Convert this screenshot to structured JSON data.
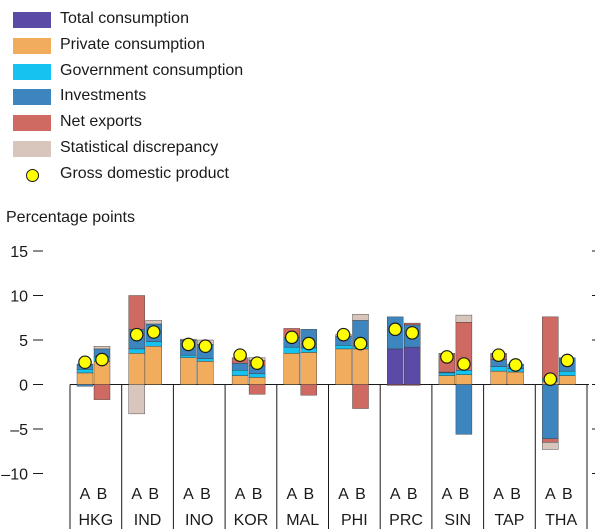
{
  "colors": {
    "total": "#5b4ba6",
    "private": "#f1ad5d",
    "government": "#16c3f0",
    "investments": "#3d85be",
    "net_exports": "#cf6a63",
    "statistical": "#d8c6bd",
    "gdp": "#ffff00"
  },
  "legend": [
    {
      "key": "total",
      "label": "Total consumption"
    },
    {
      "key": "private",
      "label": "Private consumption"
    },
    {
      "key": "government",
      "label": "Government consumption"
    },
    {
      "key": "investments",
      "label": "Investments"
    },
    {
      "key": "net_exports",
      "label": "Net exports"
    },
    {
      "key": "statistical",
      "label": "Statistical discrepancy"
    },
    {
      "key": "gdp",
      "label": "Gross domestic product"
    }
  ],
  "chart_data": {
    "type": "bar",
    "stacked": true,
    "ylabel": "Percentage points",
    "ylim": [
      -11.5,
      15
    ],
    "yticks": [
      15,
      10,
      5,
      0,
      -5,
      -10
    ],
    "ytick_labels": [
      "15",
      "10",
      "5",
      "0",
      "–5",
      "–10"
    ],
    "bar_labels": [
      "A",
      "B"
    ],
    "categories": [
      "HKG",
      "IND",
      "INO",
      "KOR",
      "MAL",
      "PHI",
      "PRC",
      "SIN",
      "TAP",
      "THA"
    ],
    "groups": [
      {
        "code": "HKG",
        "bars": [
          {
            "total": 0,
            "private": 1.3,
            "government": 0.4,
            "investments": 0.6,
            "net_exports": 0,
            "statistical": 0,
            "neg_investments": -0.2,
            "neg_net_exports": 0,
            "neg_statistical": 0,
            "gdp": 2.5
          },
          {
            "total": 0,
            "private": 2.6,
            "government": 0.5,
            "investments": 0.9,
            "net_exports": 0,
            "statistical": 0.3,
            "neg_investments": 0,
            "neg_net_exports": -1.7,
            "neg_statistical": 0,
            "gdp": 2.8
          }
        ]
      },
      {
        "code": "IND",
        "bars": [
          {
            "total": 0,
            "private": 3.5,
            "government": 0.5,
            "investments": 2.2,
            "net_exports": 3.8,
            "statistical": 0,
            "neg_investments": 0,
            "neg_net_exports": 0,
            "neg_statistical": -3.3,
            "gdp": 5.6
          },
          {
            "total": 0,
            "private": 4.3,
            "government": 0.5,
            "investments": 2.0,
            "net_exports": 0,
            "statistical": 0.4,
            "neg_investments": 0,
            "neg_net_exports": 0,
            "neg_statistical": 0,
            "gdp": 5.9
          }
        ]
      },
      {
        "code": "INO",
        "bars": [
          {
            "total": 0,
            "private": 3.0,
            "government": 0.3,
            "investments": 1.7,
            "net_exports": 0,
            "statistical": 0.1,
            "neg_investments": 0,
            "neg_net_exports": 0,
            "neg_statistical": 0,
            "gdp": 4.5
          },
          {
            "total": 0,
            "private": 2.6,
            "government": 0.3,
            "investments": 1.6,
            "net_exports": 0,
            "statistical": 0.5,
            "neg_investments": 0,
            "neg_net_exports": 0,
            "neg_statistical": 0,
            "gdp": 4.3
          }
        ]
      },
      {
        "code": "KOR",
        "bars": [
          {
            "total": 0,
            "private": 1.0,
            "government": 0.6,
            "investments": 0.8,
            "net_exports": 0.5,
            "statistical": 0.1,
            "neg_investments": 0,
            "neg_net_exports": 0,
            "neg_statistical": 0,
            "gdp": 3.3
          },
          {
            "total": 0,
            "private": 0.8,
            "government": 0.4,
            "investments": 0.9,
            "net_exports": 0.6,
            "statistical": 0.3,
            "neg_investments": 0,
            "neg_net_exports": -1.1,
            "neg_statistical": 0,
            "gdp": 2.4
          }
        ]
      },
      {
        "code": "MAL",
        "bars": [
          {
            "total": 0,
            "private": 3.5,
            "government": 0.7,
            "investments": 1.1,
            "net_exports": 1.0,
            "statistical": 0,
            "neg_investments": 0,
            "neg_net_exports": 0,
            "neg_statistical": 0,
            "gdp": 5.3
          },
          {
            "total": 0,
            "private": 3.6,
            "government": 0.5,
            "investments": 2.1,
            "net_exports": 0,
            "statistical": 0,
            "neg_investments": 0,
            "neg_net_exports": -1.2,
            "neg_statistical": 0,
            "gdp": 4.6
          }
        ]
      },
      {
        "code": "PHI",
        "bars": [
          {
            "total": 0,
            "private": 4.0,
            "government": 0.4,
            "investments": 1.0,
            "net_exports": 0,
            "statistical": 0.2,
            "neg_investments": 0,
            "neg_net_exports": 0,
            "neg_statistical": 0,
            "gdp": 5.6
          },
          {
            "total": 0,
            "private": 4.0,
            "government": 0.3,
            "investments": 2.9,
            "net_exports": 0,
            "statistical": 0.7,
            "neg_investments": 0,
            "neg_net_exports": -2.7,
            "neg_statistical": 0,
            "gdp": 4.6
          }
        ]
      },
      {
        "code": "PRC",
        "bars": [
          {
            "total": 4.0,
            "private": 0,
            "government": 0,
            "investments": 3.6,
            "net_exports": 0,
            "statistical": 0,
            "neg_investments": 0,
            "neg_net_exports": -0.1,
            "neg_statistical": 0,
            "gdp": 6.2
          },
          {
            "total": 4.2,
            "private": 0,
            "government": 0,
            "investments": 2.5,
            "net_exports": 0.2,
            "statistical": 0,
            "neg_investments": 0,
            "neg_net_exports": -0.1,
            "neg_statistical": 0,
            "gdp": 5.8
          }
        ]
      },
      {
        "code": "SIN",
        "bars": [
          {
            "total": 0,
            "private": 1.0,
            "government": 0.3,
            "investments": 0.1,
            "net_exports": 2.1,
            "statistical": 0,
            "neg_investments": 0,
            "neg_net_exports": 0,
            "neg_statistical": 0,
            "gdp": 3.1
          },
          {
            "total": 0,
            "private": 1.1,
            "government": 0.5,
            "investments": 0,
            "net_exports": 5.4,
            "statistical": 0.8,
            "neg_investments": -5.6,
            "neg_net_exports": 0,
            "neg_statistical": 0,
            "gdp": 2.3
          }
        ]
      },
      {
        "code": "TAP",
        "bars": [
          {
            "total": 0,
            "private": 1.5,
            "government": 0.5,
            "investments": 0.8,
            "net_exports": 0.7,
            "statistical": 0,
            "neg_investments": 0,
            "neg_net_exports": 0,
            "neg_statistical": 0,
            "gdp": 3.3
          },
          {
            "total": 0,
            "private": 1.4,
            "government": 0.4,
            "investments": 0.5,
            "net_exports": 0,
            "statistical": 0,
            "neg_investments": 0,
            "neg_net_exports": 0,
            "neg_statistical": 0,
            "gdp": 2.2
          }
        ]
      },
      {
        "code": "THA",
        "bars": [
          {
            "total": 0,
            "private": 0.3,
            "government": 0.3,
            "investments": 0,
            "net_exports": 7.0,
            "statistical": 0,
            "neg_investments": -6.1,
            "neg_net_exports": -0.4,
            "neg_statistical": -0.8,
            "gdp": 0.6
          },
          {
            "total": 0,
            "private": 1.0,
            "government": 0.5,
            "investments": 1.5,
            "net_exports": 0,
            "statistical": 0,
            "neg_investments": 0,
            "neg_net_exports": 0,
            "neg_statistical": 0,
            "gdp": 2.7
          }
        ]
      }
    ]
  }
}
